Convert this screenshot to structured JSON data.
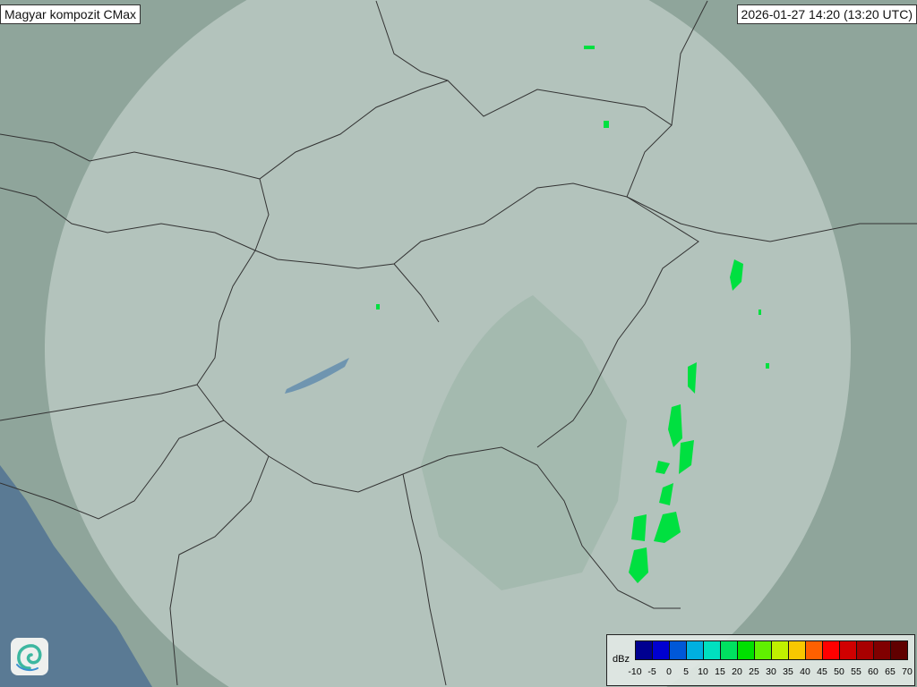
{
  "header": {
    "title": "Magyar kompozit  CMax",
    "timestamp": "2026-01-27 14:20 (13:20 UTC)"
  },
  "logo": {
    "icon": "swirl-logo-icon"
  },
  "legend": {
    "unit": "dBz",
    "ticks": [
      "-10",
      "-5",
      "0",
      "5",
      "10",
      "15",
      "20",
      "25",
      "30",
      "35",
      "40",
      "45",
      "50",
      "55",
      "60",
      "65",
      "70"
    ],
    "colors": [
      "#000090",
      "#0000d0",
      "#0058d8",
      "#00b0e0",
      "#00e0c0",
      "#00e060",
      "#00e000",
      "#60f000",
      "#c0f000",
      "#f8c800",
      "#ff6000",
      "#ff0000",
      "#d00000",
      "#a80000",
      "#800000",
      "#600000"
    ]
  },
  "map": {
    "background": "#8fa59b",
    "coverage_color": "#dfe8e4",
    "water_color": "#5a7a94",
    "echo_color": "#00e040"
  }
}
